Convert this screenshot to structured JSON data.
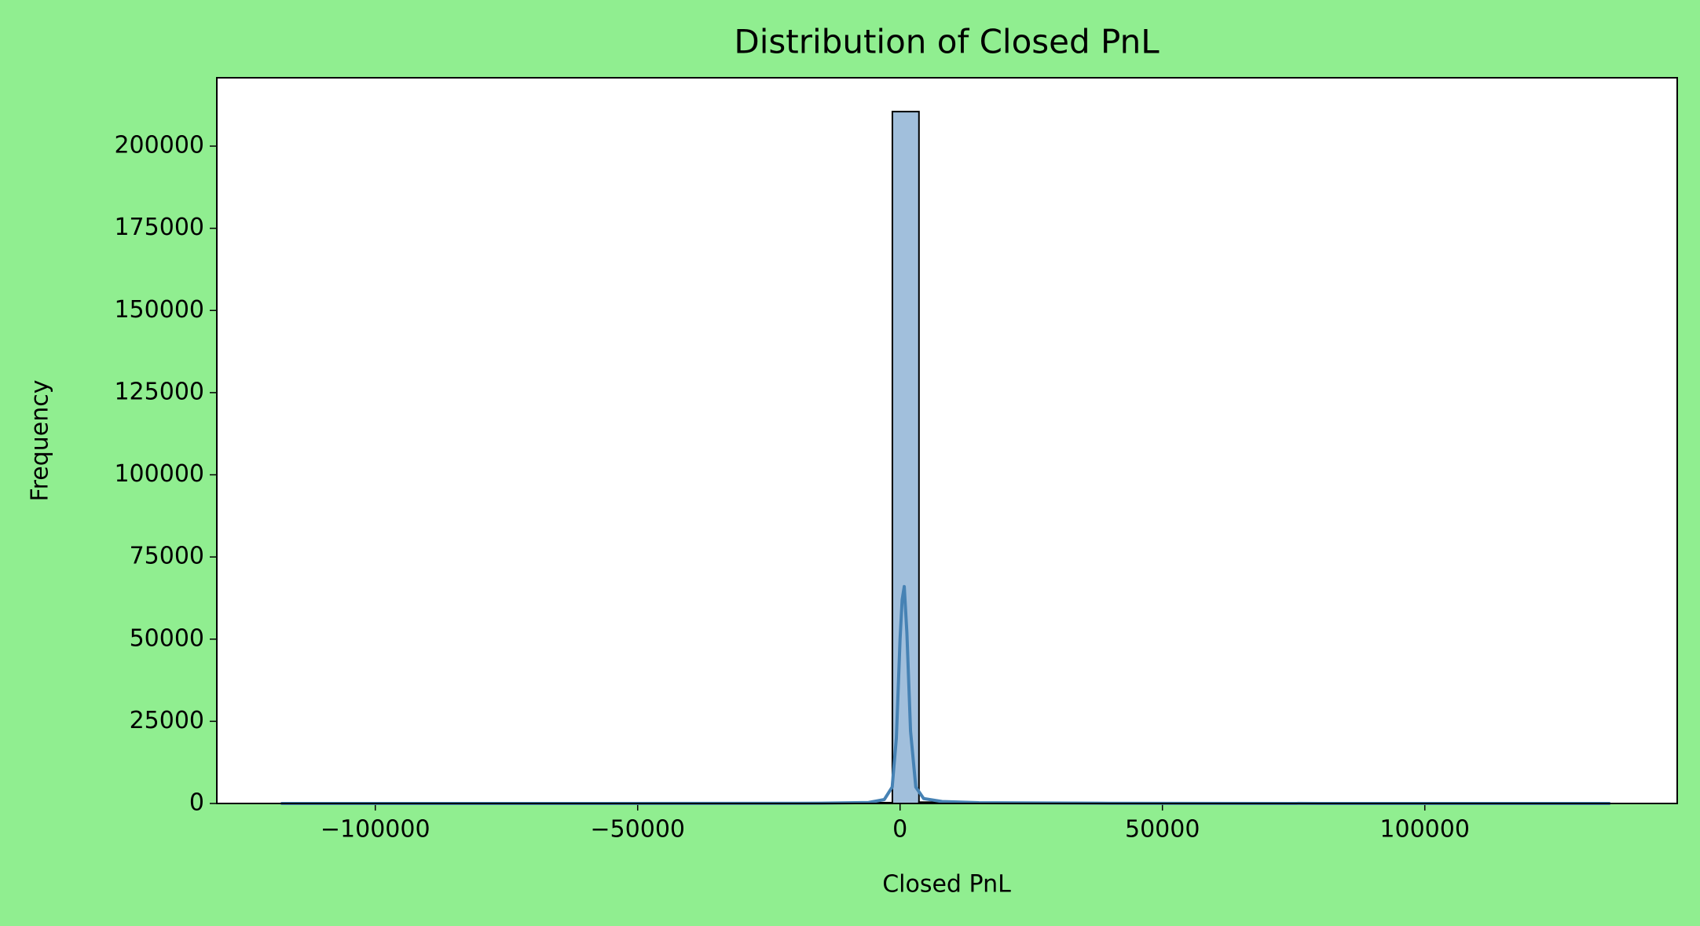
{
  "chart_data": {
    "type": "histogram",
    "title": "Distribution of Closed PnL",
    "x_label": "Closed PnL",
    "y_label": "Frequency",
    "bins": [
      -117990,
      -112923.6,
      -107857.2,
      -102790.8,
      -97724.4,
      -92658,
      -87591.6,
      -82525.2,
      -77458.8,
      -72392.4,
      -67326,
      -62259.6,
      -57193.2,
      -52126.8,
      -47060.4,
      -41994,
      -36927.6,
      -31861.2,
      -26794.8,
      -21728.4,
      -16662,
      -11595.6,
      -6529.2,
      -1462.8,
      3603.6,
      8670,
      13736.4,
      18802.8,
      23869.2,
      28935.6,
      34002,
      39068.4,
      44134.8,
      49201.2,
      54267.6,
      59334,
      64400.4,
      69466.8,
      74533.2,
      79599.6,
      84666,
      89732.4,
      94798.8,
      99865.2,
      104931.6,
      109998,
      115064.4,
      120130.8,
      125197.2,
      130263.6,
      135330
    ],
    "counts": [
      1,
      0,
      0,
      0,
      0,
      0,
      0,
      0,
      0,
      0,
      0,
      0,
      0,
      0,
      1,
      0,
      2,
      1,
      3,
      5,
      10,
      30,
      250,
      210500,
      400,
      50,
      15,
      8,
      5,
      3,
      2,
      2,
      1,
      1,
      1,
      0,
      1,
      0,
      0,
      0,
      0,
      0,
      0,
      0,
      0,
      0,
      0,
      0,
      0,
      1
    ],
    "color": "#a1bfdc",
    "edgecolor": "#000000",
    "kde": {
      "color": "#4682b4",
      "x": [
        -117990,
        -80000,
        -40000,
        -15000,
        -6000,
        -3000,
        -1500,
        -700,
        0,
        400,
        800,
        1300,
        2000,
        3000,
        4500,
        8000,
        15000,
        40000,
        80000,
        135330
      ],
      "values": [
        0,
        0,
        20,
        80,
        300,
        1200,
        5000,
        20000,
        50000,
        62000,
        66000,
        52000,
        22000,
        5000,
        1500,
        600,
        250,
        60,
        10,
        0
      ]
    },
    "xlim": [
      -130200,
      148100
    ],
    "ylim": [
      0,
      220800
    ],
    "xticks": [
      {
        "value": -100000,
        "label": "−100000"
      },
      {
        "value": -50000,
        "label": "−50000"
      },
      0,
      50000,
      100000
    ],
    "yticks": [
      0,
      25000,
      50000,
      75000,
      100000,
      125000,
      150000,
      175000,
      200000
    ]
  }
}
